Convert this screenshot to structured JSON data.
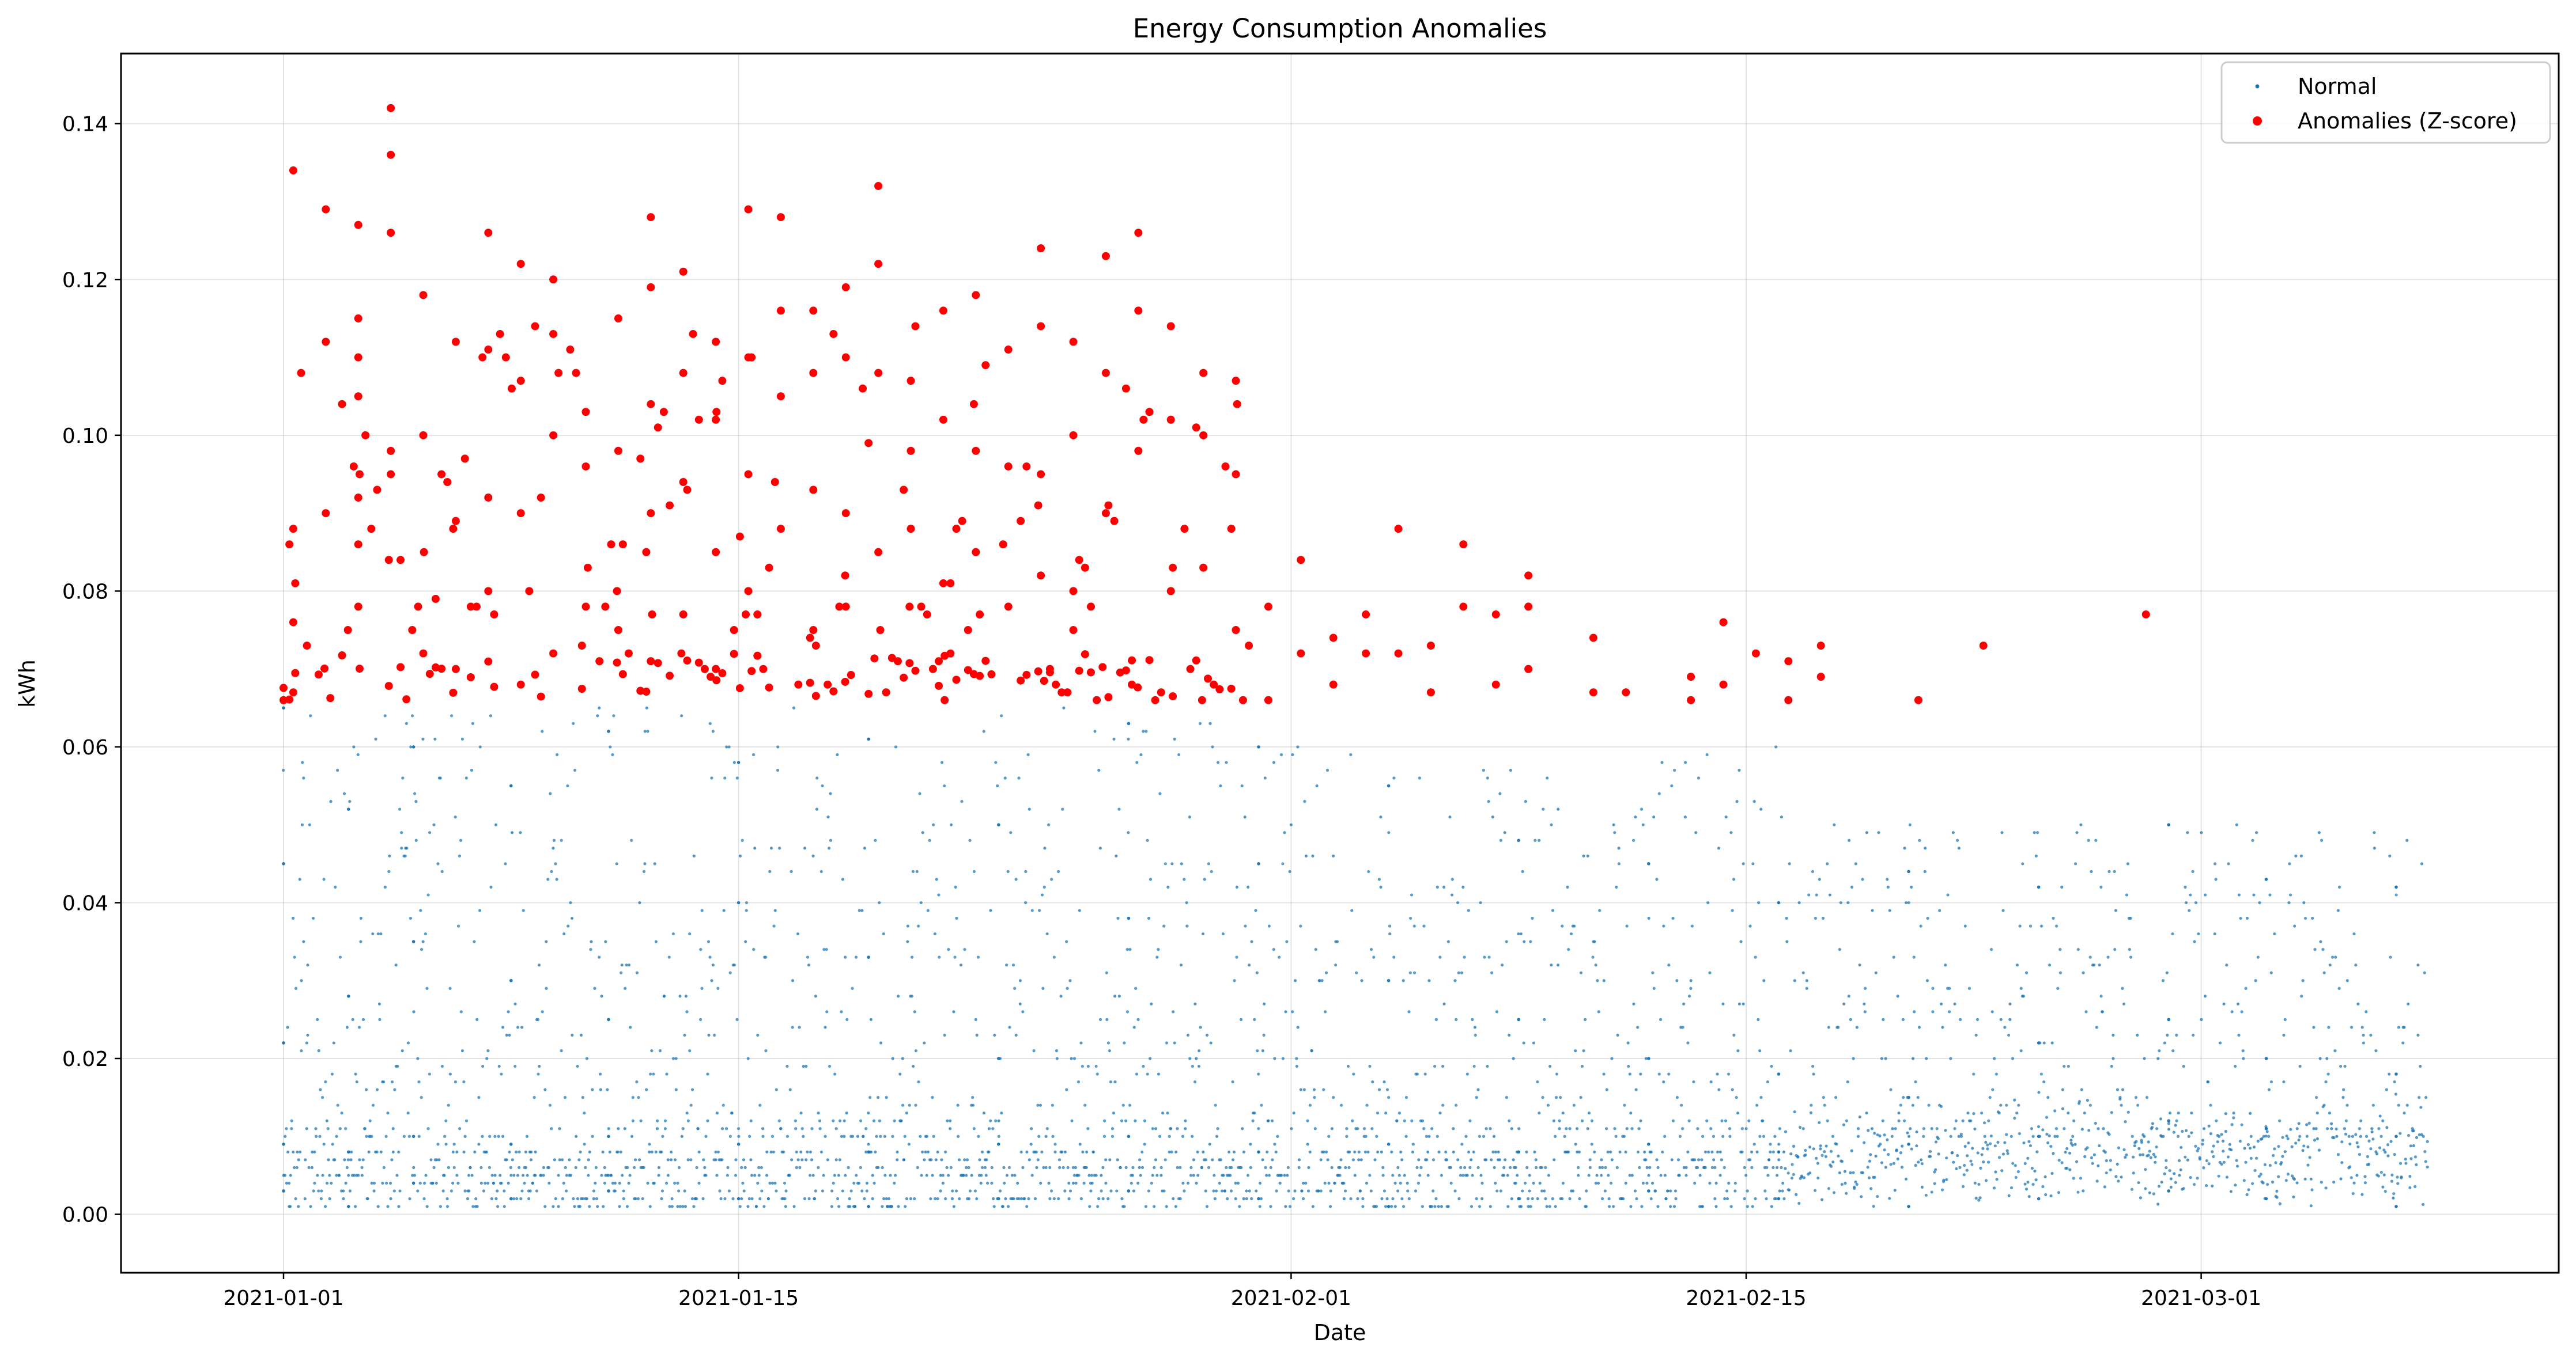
{
  "chart_data": {
    "type": "scatter",
    "title": "Energy Consumption Anomalies",
    "xlabel": "Date",
    "ylabel": "kWh",
    "xlim": [
      "2020-12-27",
      "2021-03-12"
    ],
    "ylim": [
      -0.0075,
      0.149
    ],
    "x_ticks": [
      "2021-01-01",
      "2021-01-15",
      "2021-02-01",
      "2021-02-15",
      "2021-03-01"
    ],
    "y_ticks": [
      "0.00",
      "0.02",
      "0.04",
      "0.06",
      "0.08",
      "0.10",
      "0.12",
      "0.14"
    ],
    "grid": true,
    "legend_position": "top-right",
    "anomaly_threshold": 0.066,
    "x_range": [
      "2021-01-01",
      "2021-03-08"
    ],
    "series": [
      {
        "name": "Normal",
        "color": "#1f77b4",
        "marker": "small-dot",
        "sampled_points": [
          [
            "2021-01-01",
            0.003
          ],
          [
            "2021-01-01",
            0.009
          ],
          [
            "2021-01-01",
            0.022
          ],
          [
            "2021-01-01",
            0.045
          ],
          [
            "2021-01-01",
            0.065
          ],
          [
            "2021-01-03",
            0.001
          ],
          [
            "2021-01-03",
            0.008
          ],
          [
            "2021-01-03",
            0.028
          ],
          [
            "2021-01-03",
            0.052
          ],
          [
            "2021-01-05",
            0.004
          ],
          [
            "2021-01-05",
            0.01
          ],
          [
            "2021-01-05",
            0.035
          ],
          [
            "2021-01-05",
            0.06
          ],
          [
            "2021-01-08",
            0.002
          ],
          [
            "2021-01-08",
            0.009
          ],
          [
            "2021-01-08",
            0.03
          ],
          [
            "2021-01-08",
            0.055
          ],
          [
            "2021-01-11",
            0.003
          ],
          [
            "2021-01-11",
            0.01
          ],
          [
            "2021-01-11",
            0.025
          ],
          [
            "2021-01-11",
            0.062
          ],
          [
            "2021-01-15",
            0.002
          ],
          [
            "2021-01-15",
            0.009
          ],
          [
            "2021-01-15",
            0.04
          ],
          [
            "2021-01-15",
            0.058
          ],
          [
            "2021-01-19",
            0.001
          ],
          [
            "2021-01-19",
            0.008
          ],
          [
            "2021-01-19",
            0.033
          ],
          [
            "2021-01-19",
            0.061
          ],
          [
            "2021-01-23",
            0.002
          ],
          [
            "2021-01-23",
            0.009
          ],
          [
            "2021-01-23",
            0.02
          ],
          [
            "2021-01-23",
            0.05
          ],
          [
            "2021-01-27",
            0.003
          ],
          [
            "2021-01-27",
            0.01
          ],
          [
            "2021-01-27",
            0.038
          ],
          [
            "2021-01-27",
            0.063
          ],
          [
            "2021-01-31",
            0.002
          ],
          [
            "2021-01-31",
            0.008
          ],
          [
            "2021-01-31",
            0.045
          ],
          [
            "2021-01-31",
            0.06
          ],
          [
            "2021-02-04",
            0.001
          ],
          [
            "2021-02-04",
            0.009
          ],
          [
            "2021-02-04",
            0.03
          ],
          [
            "2021-02-04",
            0.055
          ],
          [
            "2021-02-08",
            0.002
          ],
          [
            "2021-02-08",
            0.008
          ],
          [
            "2021-02-08",
            0.025
          ],
          [
            "2021-02-08",
            0.048
          ],
          [
            "2021-02-12",
            0.003
          ],
          [
            "2021-02-12",
            0.009
          ],
          [
            "2021-02-12",
            0.02
          ],
          [
            "2021-02-12",
            0.045
          ],
          [
            "2021-02-16",
            0.002
          ],
          [
            "2021-02-16",
            0.008
          ],
          [
            "2021-02-16",
            0.018
          ],
          [
            "2021-02-16",
            0.04
          ],
          [
            "2021-02-20",
            0.001
          ],
          [
            "2021-02-20",
            0.009
          ],
          [
            "2021-02-20",
            0.015
          ],
          [
            "2021-02-20",
            0.044
          ],
          [
            "2021-02-24",
            0.002
          ],
          [
            "2021-02-24",
            0.01
          ],
          [
            "2021-02-24",
            0.022
          ],
          [
            "2021-02-24",
            0.042
          ],
          [
            "2021-02-28",
            0.003
          ],
          [
            "2021-02-28",
            0.012
          ],
          [
            "2021-02-28",
            0.025
          ],
          [
            "2021-02-28",
            0.05
          ],
          [
            "2021-03-03",
            0.002
          ],
          [
            "2021-03-03",
            0.011
          ],
          [
            "2021-03-03",
            0.02
          ],
          [
            "2021-03-03",
            0.043
          ],
          [
            "2021-03-07",
            0.001
          ],
          [
            "2021-03-07",
            0.01
          ],
          [
            "2021-03-07",
            0.018
          ],
          [
            "2021-03-07",
            0.042
          ]
        ]
      },
      {
        "name": "Anomalies (Z-score)",
        "color": "#ff0000",
        "marker": "dot",
        "sampled_points": [
          [
            "2021-01-01",
            0.134
          ],
          [
            "2021-01-01",
            0.088
          ],
          [
            "2021-01-01",
            0.076
          ],
          [
            "2021-01-01",
            0.067
          ],
          [
            "2021-01-02",
            0.129
          ],
          [
            "2021-01-02",
            0.112
          ],
          [
            "2021-01-02",
            0.09
          ],
          [
            "2021-01-03",
            0.115
          ],
          [
            "2021-01-03",
            0.105
          ],
          [
            "2021-01-03",
            0.092
          ],
          [
            "2021-01-03",
            0.078
          ],
          [
            "2021-01-03",
            0.127
          ],
          [
            "2021-01-03",
            0.11
          ],
          [
            "2021-01-03",
            0.086
          ],
          [
            "2021-01-04",
            0.142
          ],
          [
            "2021-01-04",
            0.136
          ],
          [
            "2021-01-04",
            0.126
          ],
          [
            "2021-01-04",
            0.098
          ],
          [
            "2021-01-04",
            0.095
          ],
          [
            "2021-01-05",
            0.118
          ],
          [
            "2021-01-05",
            0.1
          ],
          [
            "2021-01-05",
            0.072
          ],
          [
            "2021-01-06",
            0.112
          ],
          [
            "2021-01-06",
            0.089
          ],
          [
            "2021-01-06",
            0.07
          ],
          [
            "2021-01-07",
            0.126
          ],
          [
            "2021-01-07",
            0.111
          ],
          [
            "2021-01-07",
            0.092
          ],
          [
            "2021-01-07",
            0.08
          ],
          [
            "2021-01-08",
            0.122
          ],
          [
            "2021-01-08",
            0.107
          ],
          [
            "2021-01-08",
            0.09
          ],
          [
            "2021-01-08",
            0.068
          ],
          [
            "2021-01-09",
            0.12
          ],
          [
            "2021-01-09",
            0.113
          ],
          [
            "2021-01-09",
            0.1
          ],
          [
            "2021-01-09",
            0.072
          ],
          [
            "2021-01-10",
            0.103
          ],
          [
            "2021-01-10",
            0.096
          ],
          [
            "2021-01-10",
            0.078
          ],
          [
            "2021-01-11",
            0.115
          ],
          [
            "2021-01-11",
            0.098
          ],
          [
            "2021-01-11",
            0.075
          ],
          [
            "2021-01-12",
            0.128
          ],
          [
            "2021-01-12",
            0.119
          ],
          [
            "2021-01-12",
            0.104
          ],
          [
            "2021-01-12",
            0.09
          ],
          [
            "2021-01-12",
            0.071
          ],
          [
            "2021-01-13",
            0.121
          ],
          [
            "2021-01-13",
            0.108
          ],
          [
            "2021-01-13",
            0.094
          ],
          [
            "2021-01-13",
            0.077
          ],
          [
            "2021-01-14",
            0.112
          ],
          [
            "2021-01-14",
            0.102
          ],
          [
            "2021-01-14",
            0.085
          ],
          [
            "2021-01-14",
            0.07
          ],
          [
            "2021-01-15",
            0.129
          ],
          [
            "2021-01-15",
            0.11
          ],
          [
            "2021-01-15",
            0.095
          ],
          [
            "2021-01-15",
            0.08
          ],
          [
            "2021-01-16",
            0.128
          ],
          [
            "2021-01-16",
            0.116
          ],
          [
            "2021-01-16",
            0.105
          ],
          [
            "2021-01-16",
            0.088
          ],
          [
            "2021-01-17",
            0.116
          ],
          [
            "2021-01-17",
            0.108
          ],
          [
            "2021-01-17",
            0.093
          ],
          [
            "2021-01-17",
            0.075
          ],
          [
            "2021-01-18",
            0.119
          ],
          [
            "2021-01-18",
            0.11
          ],
          [
            "2021-01-18",
            0.09
          ],
          [
            "2021-01-18",
            0.078
          ],
          [
            "2021-01-19",
            0.132
          ],
          [
            "2021-01-19",
            0.122
          ],
          [
            "2021-01-19",
            0.108
          ],
          [
            "2021-01-19",
            0.085
          ],
          [
            "2021-01-20",
            0.107
          ],
          [
            "2021-01-20",
            0.098
          ],
          [
            "2021-01-20",
            0.088
          ],
          [
            "2021-01-21",
            0.116
          ],
          [
            "2021-01-21",
            0.102
          ],
          [
            "2021-01-21",
            0.081
          ],
          [
            "2021-01-22",
            0.118
          ],
          [
            "2021-01-22",
            0.098
          ],
          [
            "2021-01-22",
            0.085
          ],
          [
            "2021-01-23",
            0.111
          ],
          [
            "2021-01-23",
            0.096
          ],
          [
            "2021-01-23",
            0.078
          ],
          [
            "2021-01-24",
            0.124
          ],
          [
            "2021-01-24",
            0.114
          ],
          [
            "2021-01-24",
            0.095
          ],
          [
            "2021-01-24",
            0.082
          ],
          [
            "2021-01-25",
            0.112
          ],
          [
            "2021-01-25",
            0.1
          ],
          [
            "2021-01-25",
            0.075
          ],
          [
            "2021-01-26",
            0.123
          ],
          [
            "2021-01-26",
            0.108
          ],
          [
            "2021-01-26",
            0.09
          ],
          [
            "2021-01-27",
            0.126
          ],
          [
            "2021-01-27",
            0.116
          ],
          [
            "2021-01-27",
            0.098
          ],
          [
            "2021-01-28",
            0.114
          ],
          [
            "2021-01-28",
            0.102
          ],
          [
            "2021-01-28",
            0.08
          ],
          [
            "2021-01-29",
            0.108
          ],
          [
            "2021-01-29",
            0.1
          ],
          [
            "2021-01-29",
            0.083
          ],
          [
            "2021-01-30",
            0.107
          ],
          [
            "2021-01-30",
            0.095
          ],
          [
            "2021-01-30",
            0.075
          ],
          [
            "2021-01-31",
            0.078
          ],
          [
            "2021-01-31",
            0.066
          ],
          [
            "2021-02-01",
            0.084
          ],
          [
            "2021-02-01",
            0.072
          ],
          [
            "2021-02-02",
            0.074
          ],
          [
            "2021-02-02",
            0.068
          ],
          [
            "2021-02-03",
            0.077
          ],
          [
            "2021-02-03",
            0.072
          ],
          [
            "2021-02-04",
            0.088
          ],
          [
            "2021-02-04",
            0.072
          ],
          [
            "2021-02-05",
            0.073
          ],
          [
            "2021-02-05",
            0.067
          ],
          [
            "2021-02-06",
            0.086
          ],
          [
            "2021-02-06",
            0.078
          ],
          [
            "2021-02-07",
            0.077
          ],
          [
            "2021-02-07",
            0.068
          ],
          [
            "2021-02-08",
            0.082
          ],
          [
            "2021-02-08",
            0.078
          ],
          [
            "2021-02-08",
            0.07
          ],
          [
            "2021-02-10",
            0.074
          ],
          [
            "2021-02-10",
            0.067
          ],
          [
            "2021-02-11",
            0.067
          ],
          [
            "2021-02-13",
            0.069
          ],
          [
            "2021-02-13",
            0.066
          ],
          [
            "2021-02-14",
            0.076
          ],
          [
            "2021-02-14",
            0.068
          ],
          [
            "2021-02-15",
            0.072
          ],
          [
            "2021-02-16",
            0.071
          ],
          [
            "2021-02-16",
            0.066
          ],
          [
            "2021-02-17",
            0.073
          ],
          [
            "2021-02-17",
            0.069
          ],
          [
            "2021-02-20",
            0.066
          ],
          [
            "2021-02-22",
            0.073
          ],
          [
            "2021-02-27",
            0.077
          ]
        ]
      }
    ]
  }
}
